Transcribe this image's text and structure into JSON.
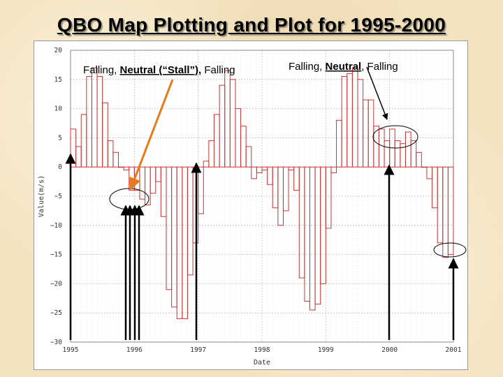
{
  "slide": {
    "title": "QBO Map Plotting and Plot for 1995-2000"
  },
  "annotations": {
    "left": {
      "prefix": "Falling, ",
      "highlight": "Neutral (“Stall”),",
      "suffix": " Falling"
    },
    "right": {
      "prefix": "Falling, ",
      "highlight": "Neutral",
      "suffix": ", Falling"
    }
  },
  "colors": {
    "series": "#cc3333",
    "grid": "#bbbbbb",
    "orange_arrow": "#e87a1e",
    "black_arrow": "#000000"
  },
  "chart_data": {
    "type": "step",
    "xlabel": "Date",
    "ylabel": "Value(m/s)",
    "xlim": [
      1995,
      2001
    ],
    "ylim": [
      -30,
      20
    ],
    "x_ticks": [
      "1995",
      "1996",
      "1997",
      "1998",
      "1999",
      "2000",
      "2001"
    ],
    "y_ticks": [
      "20",
      "15",
      "10",
      "5",
      "0",
      "−5",
      "−10",
      "−15",
      "−20",
      "−25",
      "−30"
    ],
    "grid": true,
    "x_start": 1995.0,
    "step": 0.0833333,
    "values": [
      6.5,
      3.5,
      9.0,
      15.5,
      17.0,
      15.5,
      11.0,
      4.5,
      2.5,
      0.0,
      -0.5,
      -4.0,
      -4.0,
      -5.5,
      -6.5,
      -4.5,
      -2.5,
      -8.5,
      -21.0,
      -24.0,
      -26.0,
      -26.0,
      -18.5,
      -13.0,
      -8.0,
      1.0,
      4.5,
      9.0,
      14.0,
      16.5,
      15.0,
      10.0,
      7.0,
      3.5,
      -2.0,
      -1.0,
      -0.5,
      -3.0,
      -7.0,
      -10.0,
      -7.5,
      -0.5,
      -4.0,
      -19.0,
      -23.0,
      -24.5,
      -23.5,
      -20.0,
      -10.5,
      -1.0,
      8.0,
      15.5,
      16.0,
      17.0,
      15.0,
      11.5,
      11.5,
      7.0,
      6.5,
      4.5,
      6.5,
      4.5,
      4.0,
      6.0,
      4.5,
      2.5,
      0.0,
      -2.0,
      -7.0,
      -13.0,
      -15.5,
      -15.0
    ]
  }
}
